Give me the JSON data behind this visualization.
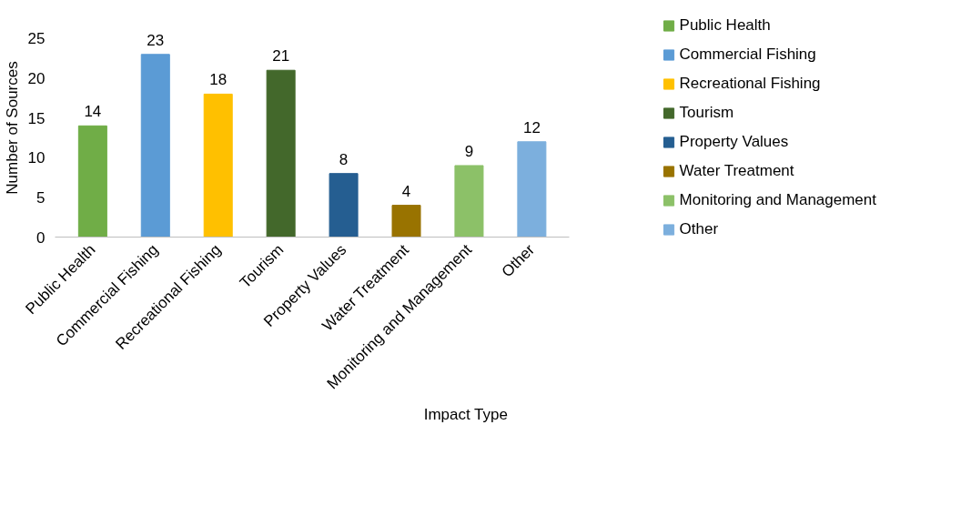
{
  "chart_data": {
    "type": "bar",
    "xlabel": "Impact Type",
    "ylabel": "Number of Sources",
    "categories": [
      "Public Health",
      "Commercial Fishing",
      "Recreational Fishing",
      "Tourism",
      "Property Values",
      "Water Treatment",
      "Monitoring and Management",
      "Other"
    ],
    "series": [
      {
        "name": "Public Health",
        "color": "#70ad47",
        "values": [
          14,
          null,
          null,
          null,
          null,
          null,
          null,
          null
        ]
      },
      {
        "name": "Commercial Fishing",
        "color": "#5b9bd5",
        "values": [
          null,
          23,
          null,
          null,
          null,
          null,
          null,
          null
        ]
      },
      {
        "name": "Recreational Fishing",
        "color": "#ffc000",
        "values": [
          null,
          null,
          18,
          null,
          null,
          null,
          null,
          null
        ]
      },
      {
        "name": "Tourism",
        "color": "#43682b",
        "values": [
          null,
          null,
          null,
          21,
          null,
          null,
          null,
          null
        ]
      },
      {
        "name": "Property Values",
        "color": "#255e91",
        "values": [
          null,
          null,
          null,
          null,
          8,
          null,
          null,
          null
        ]
      },
      {
        "name": "Water Treatment",
        "color": "#997300",
        "values": [
          null,
          null,
          null,
          null,
          null,
          4,
          null,
          null
        ]
      },
      {
        "name": "Monitoring and Management",
        "color": "#8cc168",
        "values": [
          null,
          null,
          null,
          null,
          null,
          null,
          9,
          null
        ]
      },
      {
        "name": "Other",
        "color": "#7cafdd",
        "values": [
          null,
          null,
          null,
          null,
          null,
          null,
          null,
          12
        ]
      }
    ],
    "ylim": [
      0,
      25
    ],
    "yticks": [
      0,
      5,
      10,
      15,
      20,
      25
    ],
    "grid": false,
    "legend": "right",
    "data_labels": true
  }
}
